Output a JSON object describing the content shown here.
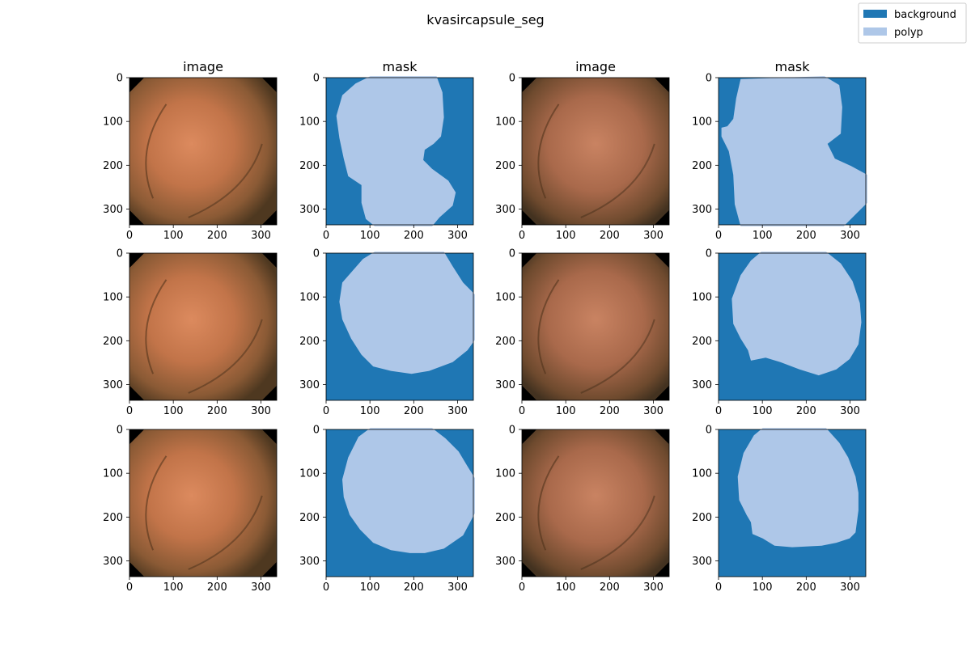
{
  "figure": {
    "title": "kvasircapsule_seg",
    "legend": [
      {
        "label": "background",
        "color": "#1f77b4"
      },
      {
        "label": "polyp",
        "color": "#aec7e8"
      }
    ],
    "columns": [
      "image",
      "mask",
      "image",
      "mask"
    ],
    "x_ticks": [
      "0",
      "100",
      "200",
      "300"
    ],
    "y_ticks": [
      "0",
      "100",
      "200",
      "300"
    ],
    "image_extent": [
      0,
      336
    ],
    "rows": 3
  },
  "colors": {
    "background_class": "#1f77b4",
    "polyp_class": "#aec7e8",
    "vignette": "#000000",
    "tissue_light": "#d9875e",
    "tissue_dark": "#5a3a22"
  }
}
